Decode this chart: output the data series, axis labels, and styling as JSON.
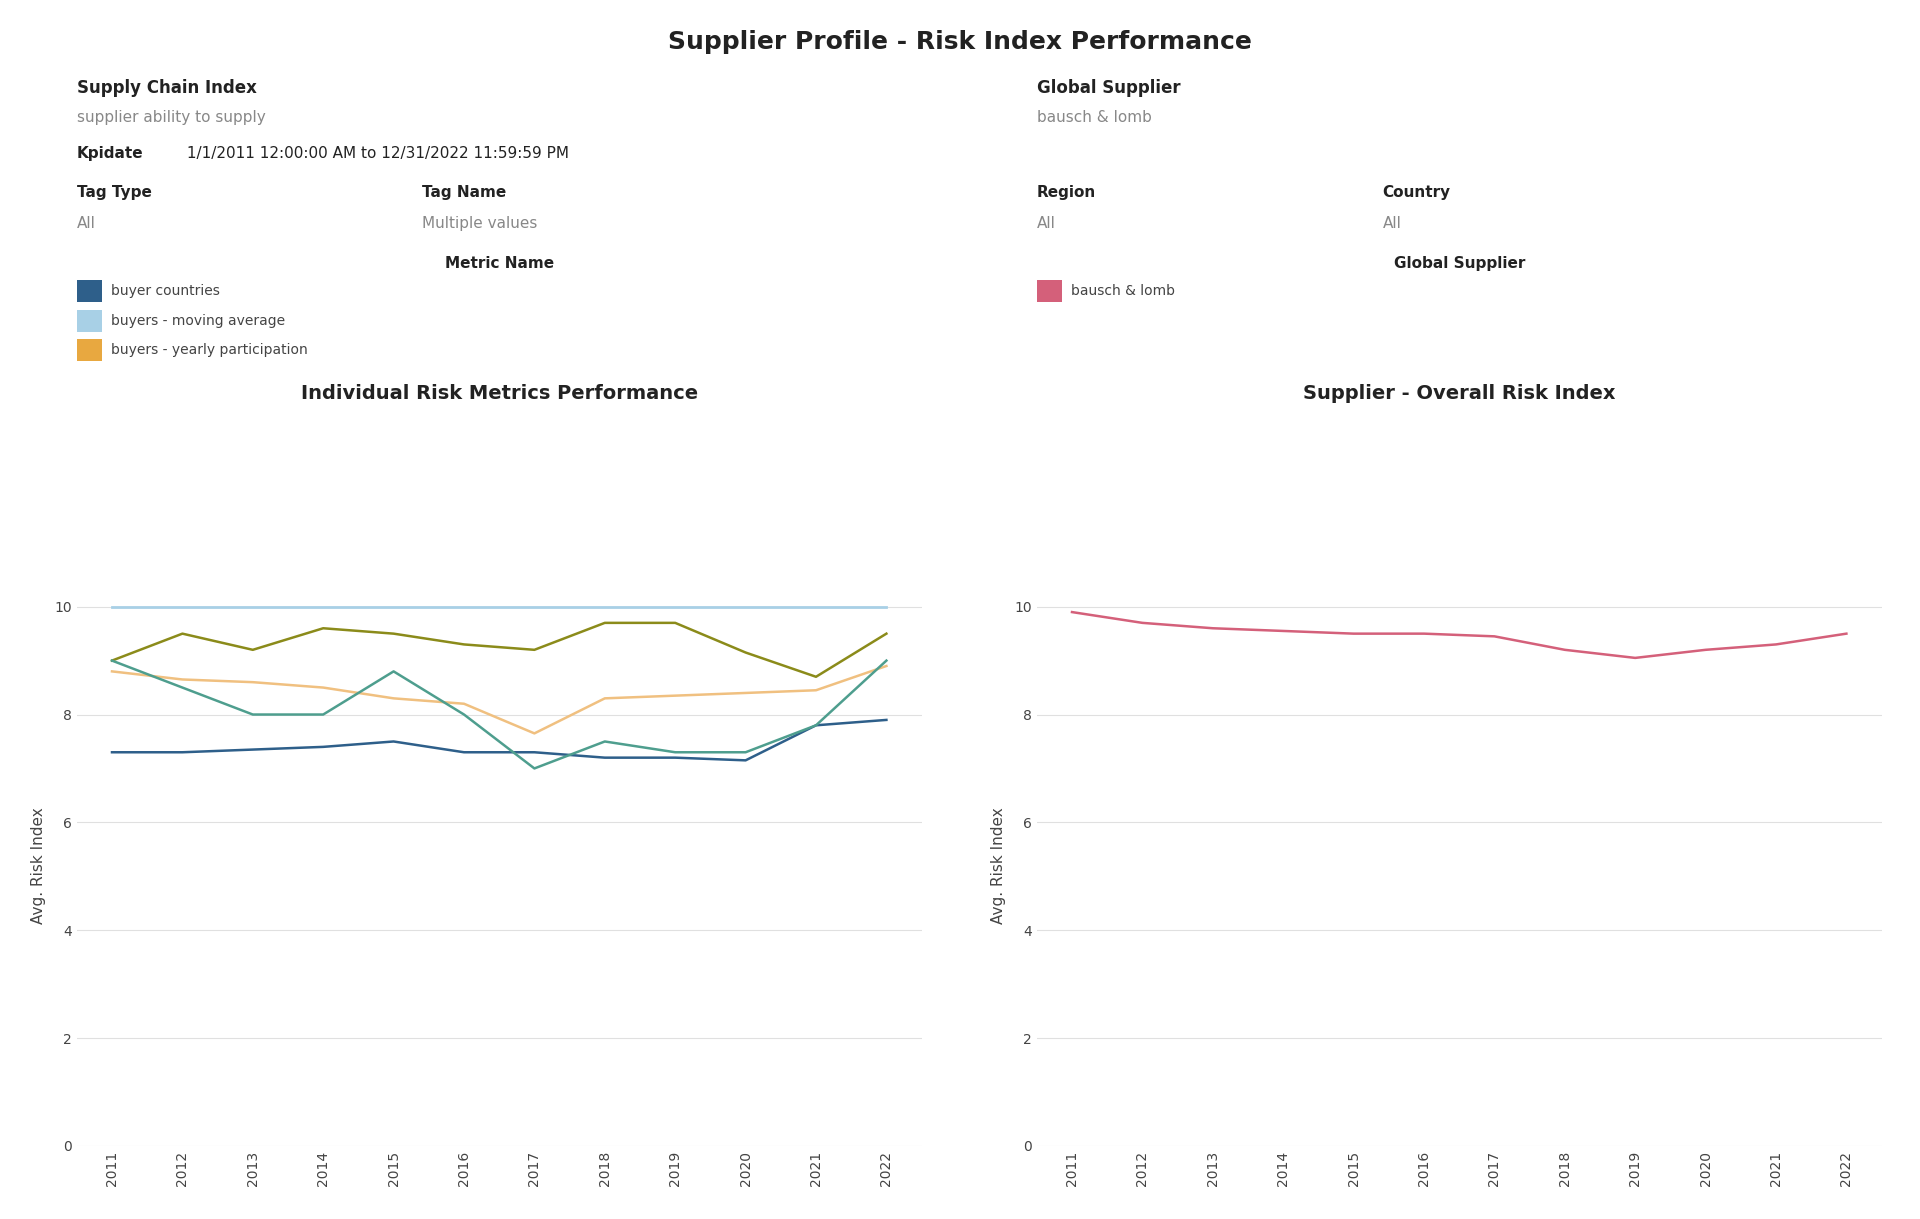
{
  "title": "Supplier Profile - Risk Index Performance",
  "supply_chain_index_label": "Supply Chain Index",
  "supply_chain_index_value": "supplier ability to supply",
  "kpidate_label": "Kpidate",
  "kpidate_value": " 1/1/2011 12:00:00 AM to 12/31/2022 11:59:59 PM",
  "global_supplier_label": "Global Supplier",
  "global_supplier_value": "bausch & lomb",
  "filter_keys": [
    "Tag Type",
    "Tag Name",
    "Region",
    "Country"
  ],
  "filter_values": [
    "All",
    "Multiple values",
    "All",
    "All"
  ],
  "legend_left_title": "Metric Name",
  "legend_left": [
    {
      "label": "buyer countries",
      "color": "#2e5f8a"
    },
    {
      "label": "buyers - moving average",
      "color": "#a8d0e6"
    },
    {
      "label": "buyers - yearly participation",
      "color": "#e8a840"
    }
  ],
  "legend_right_title": "Global Supplier",
  "legend_right": [
    {
      "label": "bausch & lomb",
      "color": "#d4607a"
    }
  ],
  "chart_left_title": "Individual Risk Metrics Performance",
  "chart_right_title": "Supplier - Overall Risk Index",
  "ylabel": "Avg. Risk Index",
  "years": [
    2011,
    2012,
    2013,
    2014,
    2015,
    2016,
    2017,
    2018,
    2019,
    2020,
    2021,
    2022
  ],
  "series_left": {
    "buyer_countries": [
      7.3,
      7.3,
      7.35,
      7.4,
      7.5,
      7.3,
      7.3,
      7.2,
      7.2,
      7.15,
      7.8,
      7.9
    ],
    "buyers_moving_average": [
      10.0,
      10.0,
      10.0,
      10.0,
      10.0,
      10.0,
      10.0,
      10.0,
      10.0,
      10.0,
      10.0,
      10.0
    ],
    "buyers_yearly_participation": [
      8.8,
      8.65,
      8.6,
      8.5,
      8.3,
      8.2,
      7.65,
      8.3,
      8.35,
      8.4,
      8.45,
      8.9
    ],
    "dark_olive_line": [
      9.0,
      9.5,
      9.2,
      9.6,
      9.5,
      9.3,
      9.2,
      9.7,
      9.7,
      9.15,
      8.7,
      9.5
    ],
    "teal_line": [
      9.0,
      8.5,
      8.0,
      8.0,
      8.8,
      8.0,
      7.0,
      7.5,
      7.3,
      7.3,
      7.8,
      9.0
    ]
  },
  "series_right": {
    "bausch_lomb": [
      9.9,
      9.7,
      9.6,
      9.55,
      9.5,
      9.5,
      9.45,
      9.2,
      9.05,
      9.2,
      9.3,
      9.5
    ]
  },
  "ylim": [
    0,
    10.4
  ],
  "yticks": [
    0,
    2,
    4,
    6,
    8,
    10
  ],
  "background_color": "#ffffff",
  "grid_color": "#e0e0e0",
  "title_fontsize": 18,
  "label_fontsize": 11,
  "tick_fontsize": 10,
  "col_dark_olive": "#8b8b1a",
  "col_teal": "#4e9e8e"
}
